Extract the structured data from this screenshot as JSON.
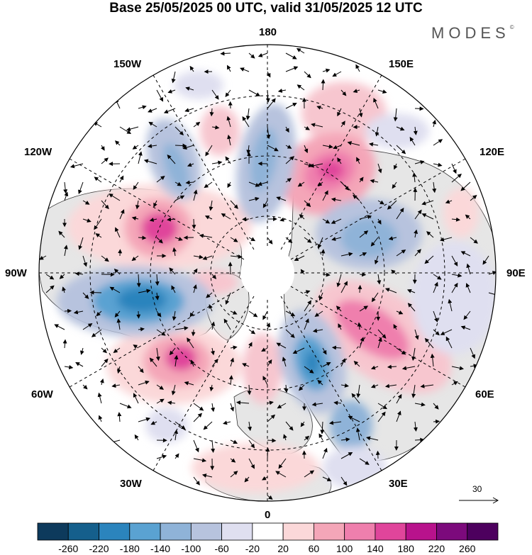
{
  "title": "Base 25/05/2025 00 UTC, valid 31/05/2025 12 UTC",
  "brand": "MODES",
  "brand_mark": "©",
  "longitude_labels": {
    "top": "180",
    "bottom": "0",
    "left": "90W",
    "right": "90E",
    "upper_left": "150W",
    "upper_right": "150E",
    "mid_upper_left": "120W",
    "mid_upper_right": "120E",
    "mid_lower_left": "60W",
    "mid_lower_right": "60E",
    "lower_left": "30W",
    "lower_right": "30E"
  },
  "reference_vector": "30",
  "colorbar": {
    "ticks": [
      "-260",
      "-220",
      "-180",
      "-140",
      "-100",
      "-60",
      "-20",
      "20",
      "60",
      "100",
      "140",
      "180",
      "220",
      "260"
    ],
    "colors": [
      "#0d3a5c",
      "#155f8c",
      "#2b84bd",
      "#5aa2d2",
      "#8fb3d8",
      "#b7c3de",
      "#dfdff0",
      "#ffffff",
      "#fbd8d9",
      "#f4a6b8",
      "#ef7fad",
      "#e0459b",
      "#b8128c",
      "#7c0a7c",
      "#4d005e"
    ]
  },
  "anomalies": [
    {
      "name": "pacific-high",
      "sign": "positive",
      "level": 4
    },
    {
      "name": "asia-high",
      "sign": "positive",
      "level": 5
    },
    {
      "name": "siberia-low",
      "sign": "negative",
      "level": 3
    },
    {
      "name": "north-america-high",
      "sign": "positive",
      "level": 5
    },
    {
      "name": "hudson-low",
      "sign": "negative",
      "level": 5
    },
    {
      "name": "atlantic-high",
      "sign": "positive",
      "level": 4
    },
    {
      "name": "europe-low",
      "sign": "negative",
      "level": 4
    },
    {
      "name": "west-siberia-high",
      "sign": "positive",
      "level": 4
    },
    {
      "name": "arctic-low",
      "sign": "negative",
      "level": 3
    }
  ]
}
